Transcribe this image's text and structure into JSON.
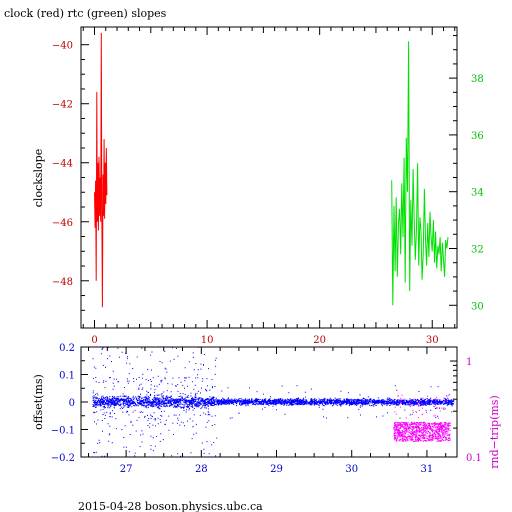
{
  "colors": {
    "clock": "#ff0000",
    "rtc": "#00e000",
    "offset": "#0000ff",
    "roundtrip": "#ff00ff",
    "clock_axis": "#c00000",
    "rtc_axis": "#00c000",
    "offset_axis": "#0000cc",
    "roundtrip_axis": "#cc00cc"
  },
  "footer": "2015-04-28 boson.physics.ubc.ca",
  "chart_data": [
    {
      "type": "line",
      "title": "clock (red) rtc (green) slopes",
      "ylabel": "clockslope",
      "xlim": [
        -1.2,
        32.2
      ],
      "ylim": [
        -49.6,
        -39.4
      ],
      "y2lim": [
        29.2,
        39.8
      ],
      "xticks": [
        0,
        10,
        20,
        30
      ],
      "yticks": [
        -48,
        -46,
        -44,
        -42,
        -40
      ],
      "y2ticks": [
        30,
        32,
        34,
        36,
        38
      ],
      "grid": false,
      "series": [
        {
          "color_key": "clock",
          "axis": "left",
          "x": [
            0.0,
            0.05,
            0.1,
            0.15,
            0.2,
            0.25,
            0.3,
            0.35,
            0.4,
            0.45,
            0.5,
            0.55,
            0.6,
            0.65,
            0.7,
            0.75,
            0.8,
            0.85,
            0.9,
            0.95,
            1.0,
            1.05,
            1.1
          ],
          "y": [
            -45.0,
            -46.2,
            -44.6,
            -48.0,
            -41.6,
            -46.0,
            -44.0,
            -46.3,
            -43.8,
            -45.8,
            -44.5,
            -46.0,
            -39.6,
            -45.5,
            -48.9,
            -44.4,
            -45.8,
            -43.2,
            -45.9,
            -44.0,
            -45.4,
            -43.5,
            -45.1
          ]
        },
        {
          "color_key": "rtc",
          "axis": "right",
          "x": [
            26.4,
            26.5,
            26.6,
            26.7,
            26.8,
            26.9,
            27.0,
            27.1,
            27.2,
            27.3,
            27.4,
            27.5,
            27.6,
            27.7,
            27.8,
            27.9,
            28.0,
            28.1,
            28.2,
            28.3,
            28.4,
            28.5,
            28.6,
            28.7,
            28.8,
            28.9,
            29.0,
            29.1,
            29.2,
            29.3,
            29.4,
            29.5,
            29.6,
            29.7,
            29.8,
            29.9,
            30.0,
            30.1,
            30.2,
            30.3,
            30.4,
            30.5,
            30.6,
            30.7,
            30.8,
            30.9,
            31.0,
            31.1,
            31.2,
            31.3,
            31.4
          ],
          "y": [
            34.4,
            30.0,
            33.5,
            31.2,
            33.8,
            31.0,
            32.9,
            33.4,
            31.8,
            34.3,
            32.4,
            35.2,
            30.8,
            35.9,
            34.0,
            39.3,
            30.5,
            33.7,
            32.1,
            34.8,
            33.0,
            31.6,
            32.7,
            35.0,
            31.4,
            33.1,
            32.6,
            30.9,
            31.8,
            34.1,
            32.3,
            31.4,
            32.9,
            31.7,
            33.3,
            32.4,
            31.9,
            33.0,
            31.5,
            32.6,
            31.3,
            32.1,
            31.8,
            32.4,
            31.2,
            32.2,
            31.6,
            31.0,
            32.3,
            32.0,
            32.4
          ]
        }
      ]
    },
    {
      "type": "scatter",
      "ylabel": "offset(ms)",
      "y2label": "rnd−trip(ms)",
      "xlim": [
        26.4,
        31.4
      ],
      "ylim": [
        -0.2,
        0.2
      ],
      "y2lim": [
        0.1,
        1.4
      ],
      "y2scale": "log",
      "xticks": [
        27,
        28,
        29,
        30,
        31
      ],
      "yticks": [
        -0.2,
        -0.1,
        0,
        0.1,
        0.2
      ],
      "ytick_labels": [
        "−0.2",
        "−0.1",
        "0",
        "0.1",
        "0.2"
      ],
      "y2ticks": [
        0.1,
        1
      ],
      "grid": false,
      "series": [
        {
          "color_key": "offset",
          "axis": "left",
          "band_ranges": [
            [
              26.55,
              28.2,
              0.012
            ],
            [
              28.2,
              31.35,
              0.007
            ]
          ],
          "spread": 0.2
        },
        {
          "color_key": "roundtrip",
          "axis": "right",
          "x_range": [
            30.55,
            31.3
          ],
          "y_range": [
            0.145,
            0.23
          ]
        }
      ]
    }
  ]
}
